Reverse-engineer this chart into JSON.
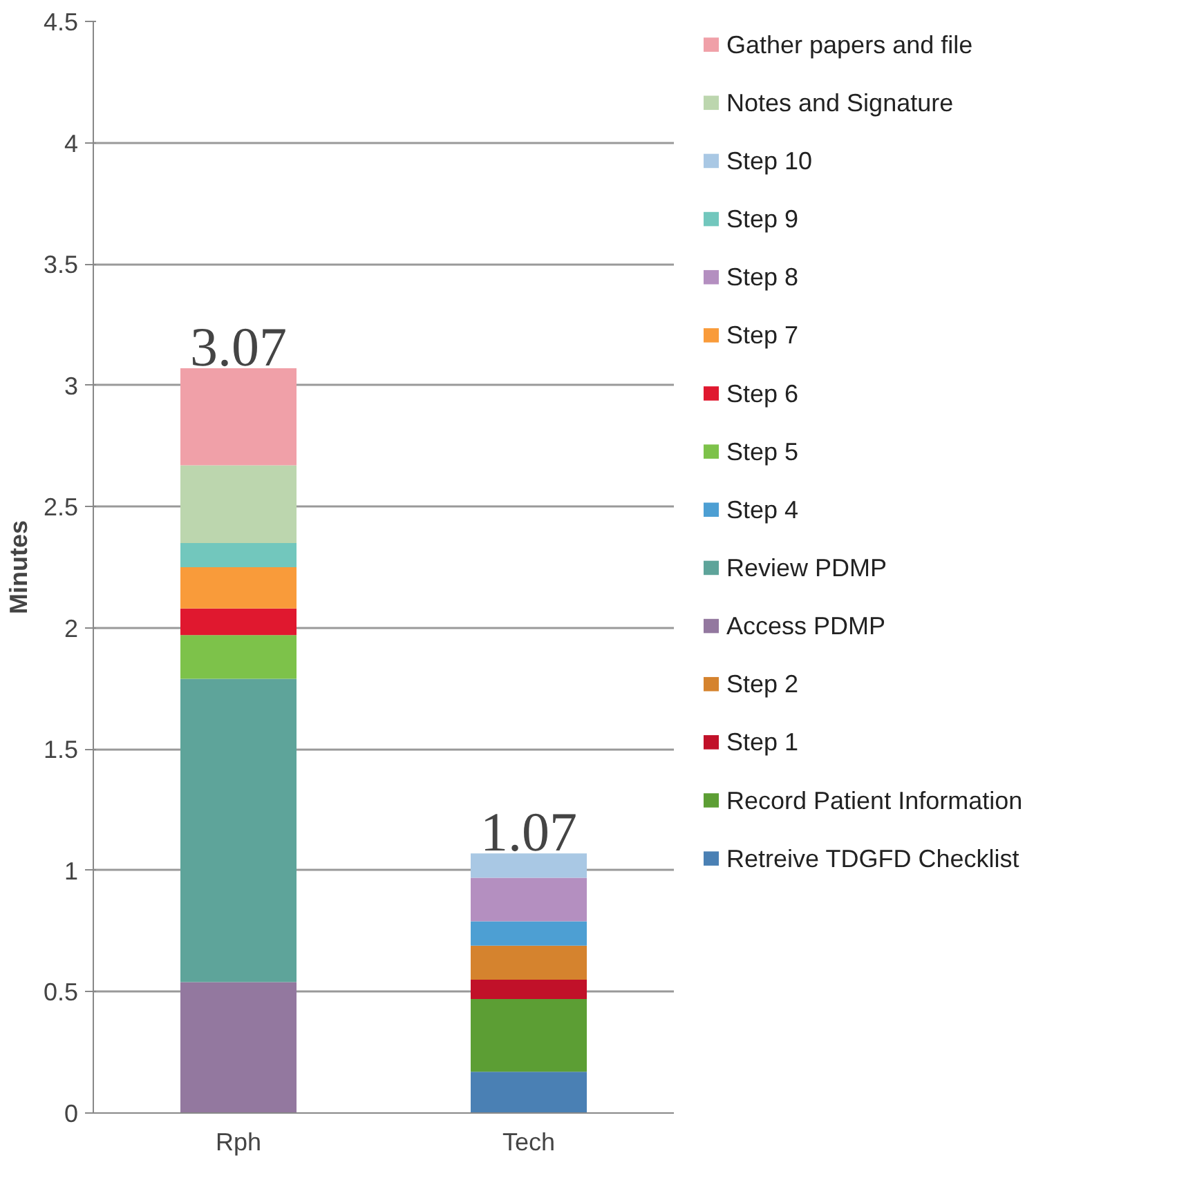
{
  "chart_data": {
    "type": "bar",
    "stacked": true,
    "ylabel": "Minutes",
    "categories": [
      "Rph",
      "Tech"
    ],
    "ylim": [
      0,
      4.5
    ],
    "yticks": [
      0,
      0.5,
      1,
      1.5,
      2,
      2.5,
      3,
      3.5,
      4,
      4.5
    ],
    "grid": "y",
    "legend": "right",
    "totals": [
      "3.07",
      "1.07"
    ],
    "series": [
      {
        "name": "Retreive TDGFD Checklist",
        "color": "#4a80b4",
        "values": [
          null,
          0.17
        ]
      },
      {
        "name": "Record Patient Information",
        "color": "#5c9e34",
        "values": [
          null,
          0.3
        ]
      },
      {
        "name": "Step 1",
        "color": "#c11129",
        "values": [
          null,
          0.08
        ]
      },
      {
        "name": "Step 2",
        "color": "#d5832e",
        "values": [
          null,
          0.14
        ]
      },
      {
        "name": "Access PDMP",
        "color": "#93789f",
        "values": [
          0.54,
          null
        ]
      },
      {
        "name": "Review PDMP",
        "color": "#5ea49a",
        "values": [
          1.25,
          null
        ]
      },
      {
        "name": "Step 4",
        "color": "#4d9fd3",
        "values": [
          null,
          0.1
        ]
      },
      {
        "name": "Step 5",
        "color": "#7dc24a",
        "values": [
          0.18,
          null
        ]
      },
      {
        "name": "Step 6",
        "color": "#e0182f",
        "values": [
          0.11,
          null
        ]
      },
      {
        "name": "Step 7",
        "color": "#f99b3a",
        "values": [
          0.17,
          null
        ]
      },
      {
        "name": "Step 8",
        "color": "#b48fc0",
        "values": [
          null,
          0.18
        ]
      },
      {
        "name": "Step 9",
        "color": "#72c7bd",
        "values": [
          0.1,
          null
        ]
      },
      {
        "name": "Step 10",
        "color": "#a9c8e4",
        "values": [
          null,
          0.1
        ]
      },
      {
        "name": "Notes and Signature",
        "color": "#bcd6ae",
        "values": [
          0.32,
          null
        ]
      },
      {
        "name": "Gather papers and file",
        "color": "#f0a0a8",
        "values": [
          0.4,
          null
        ]
      }
    ]
  }
}
